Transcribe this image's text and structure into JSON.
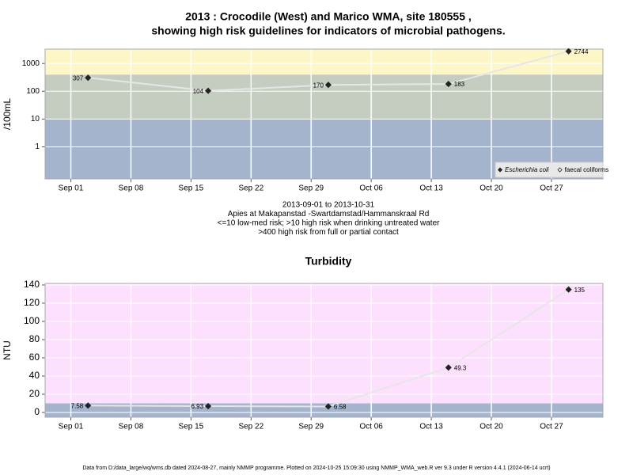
{
  "chart_data": [
    {
      "type": "line",
      "title": [
        "2013 : Crocodile (West) and Marico WMA, site 180555 ,",
        "showing high risk guidelines for indicators of microbial pathogens."
      ],
      "notes": [
        "2013-09-01 to 2013-10-31",
        "Apies at Makapanstad -Swartdamstad/Hammanskraal Rd",
        "<=10 low-med risk; >10 high risk when drinking untreated water",
        ">400 high risk from full or partial contact"
      ],
      "y_label": "/100mL",
      "x": [
        "2013-09-03",
        "2013-09-17",
        "2013-10-01",
        "2013-10-15",
        "2013-10-29"
      ],
      "series": [
        {
          "name": "Escherichia coli",
          "color": "#222222",
          "line_color": "#e6e6e6",
          "marker": "filled",
          "values": [
            307,
            104,
            170,
            183,
            2744
          ]
        },
        {
          "name": "faecal coliforms",
          "color": "#222222",
          "line_color": "#e6e6e6",
          "marker": "open",
          "values": [
            null,
            null,
            null,
            null,
            null
          ]
        }
      ],
      "log_y": true,
      "ylim": [
        0.07,
        3300
      ],
      "yticks": [
        1,
        10,
        100,
        1000
      ],
      "xlim": [
        "2013-08-29",
        "2013-11-02"
      ],
      "xticks": [
        {
          "value": "2013-09-01",
          "label": "Sep 01"
        },
        {
          "value": "2013-09-08",
          "label": "Sep 08"
        },
        {
          "value": "2013-09-15",
          "label": "Sep 15"
        },
        {
          "value": "2013-09-22",
          "label": "Sep 22"
        },
        {
          "value": "2013-09-29",
          "label": "Sep 29"
        },
        {
          "value": "2013-10-06",
          "label": "Oct 06"
        },
        {
          "value": "2013-10-13",
          "label": "Oct 13"
        },
        {
          "value": "2013-10-20",
          "label": "Oct 20"
        },
        {
          "value": "2013-10-27",
          "label": "Oct 27"
        }
      ],
      "band_edges": [
        10,
        400
      ],
      "band_colors": [
        "#a3b4cc",
        "#c5ccc0",
        "#fdf7c8"
      ],
      "grid": true,
      "legend": "bottom-right"
    },
    {
      "type": "line",
      "title": [
        "Turbidity"
      ],
      "y_label": "NTU",
      "x": [
        "2013-09-03",
        "2013-09-17",
        "2013-10-01",
        "2013-10-15",
        "2013-10-29"
      ],
      "series": [
        {
          "color": "#222222",
          "line_color": "#e6e6e6",
          "marker": "filled",
          "values": [
            7.58,
            6.93,
            6.58,
            49.3,
            135
          ]
        }
      ],
      "log_y": false,
      "ylim": [
        -5.2,
        141.7
      ],
      "yticks": [
        0,
        20,
        40,
        60,
        80,
        100,
        120,
        140
      ],
      "xlim": [
        "2013-08-29",
        "2013-11-02"
      ],
      "xticks": [
        {
          "value": "2013-09-01",
          "label": "Sep 01"
        },
        {
          "value": "2013-09-08",
          "label": "Sep 08"
        },
        {
          "value": "2013-09-15",
          "label": "Sep 15"
        },
        {
          "value": "2013-09-22",
          "label": "Sep 22"
        },
        {
          "value": "2013-09-29",
          "label": "Sep 29"
        },
        {
          "value": "2013-10-06",
          "label": "Oct 06"
        },
        {
          "value": "2013-10-13",
          "label": "Oct 13"
        },
        {
          "value": "2013-10-20",
          "label": "Oct 20"
        },
        {
          "value": "2013-10-27",
          "label": "Oct 27"
        }
      ],
      "band_edges": [
        10
      ],
      "band_colors": [
        "#a3b4cc",
        "#fde0fd"
      ],
      "grid": true
    }
  ],
  "footer": "Data from D:/data_large/wq/wms.db dated 2024-08-27, mainly NMMP programme. Plotted on 2024-10-25 15:09:30 using NMMP_WMA_web.R ver 9.3 under R version 4.4.1 (2024-06-14 ucrt)"
}
